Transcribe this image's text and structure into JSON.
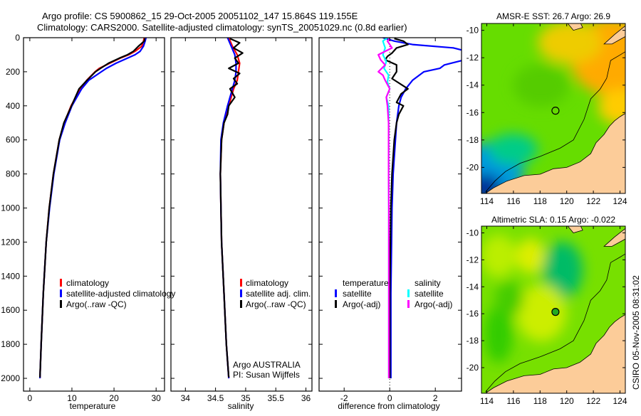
{
  "title_line1": "Argo profile: CS 5900862_15 29-Oct-2005 20051102_147 15.864S 119.155E",
  "title_line2": "Climatology: CARS2000. Satellite-adjusted climatology: synTS_20051029.nc (0.8d earlier)",
  "footer_vertical": "CSIRO 05-Nov-2005 08:31:02",
  "colors": {
    "climatology": "#ff0000",
    "satellite": "#0000ff",
    "argo": "#000000",
    "sal_satellite": "#00ffff",
    "sal_argo": "#ff00ff",
    "land": "#fccc99"
  },
  "chart_data": [
    {
      "type": "line",
      "id": "temperature",
      "xlabel": "temperature",
      "ylabel": "depth",
      "xlim": [
        -1.5,
        32
      ],
      "ylim": [
        2075,
        0
      ],
      "xticks": [
        0,
        10,
        20,
        30
      ],
      "yticks": [
        0,
        200,
        400,
        600,
        800,
        1000,
        1200,
        1400,
        1600,
        1800,
        2000
      ],
      "legend": [
        "climatology",
        "satellite-adjusted climatology",
        "Argo(..raw -QC)"
      ],
      "series": [
        {
          "name": "climatology",
          "color": "#ff0000",
          "depth": [
            0,
            20,
            50,
            80,
            100,
            120,
            150,
            180,
            200,
            250,
            300,
            400,
            500,
            600,
            800,
            1000,
            1200,
            1500,
            1800,
            2000
          ],
          "values": [
            27.2,
            27.0,
            26.6,
            25.0,
            23.5,
            21.5,
            19.0,
            16.5,
            15.5,
            13.5,
            12.0,
            9.8,
            8.2,
            7.0,
            5.6,
            4.6,
            3.9,
            3.2,
            2.7,
            2.4
          ]
        },
        {
          "name": "satellite-adjusted climatology",
          "color": "#0000ff",
          "depth": [
            0,
            20,
            50,
            80,
            100,
            120,
            150,
            180,
            200,
            250,
            300,
            400,
            500,
            600,
            800,
            1000,
            1200,
            1500,
            1800,
            2000
          ],
          "values": [
            27.6,
            27.4,
            27.0,
            26.2,
            25.0,
            23.2,
            20.5,
            18.2,
            17.0,
            14.0,
            12.3,
            10.0,
            8.4,
            7.1,
            5.7,
            4.7,
            3.9,
            3.2,
            2.7,
            2.4
          ]
        },
        {
          "name": "Argo(..raw -QC)",
          "color": "#000000",
          "depth": [
            5,
            20,
            50,
            80,
            100,
            120,
            150,
            180,
            200,
            250,
            300,
            400,
            500,
            600,
            800,
            1000,
            1200,
            1500,
            1800,
            1995
          ],
          "values": [
            27.3,
            27.2,
            25.8,
            24.6,
            23.2,
            21.3,
            18.7,
            16.8,
            15.6,
            13.6,
            11.7,
            9.9,
            8.1,
            7.0,
            5.6,
            4.6,
            3.9,
            3.2,
            2.7,
            2.4
          ]
        }
      ]
    },
    {
      "type": "line",
      "id": "salinity",
      "xlabel": "salinity",
      "ylabel": "depth",
      "xlim": [
        33.76,
        36.1
      ],
      "ylim": [
        2075,
        0
      ],
      "xticks": [
        34,
        34.5,
        35,
        35.5,
        36
      ],
      "yticks": [
        0,
        200,
        400,
        600,
        800,
        1000,
        1200,
        1400,
        1600,
        1800,
        2000
      ],
      "legend": [
        "climatology",
        "satellite adj. clim.",
        "Argo(..raw -QC)"
      ],
      "annotation": [
        "Argo AUSTRALIA",
        "PI: Susan Wijffels"
      ],
      "series": [
        {
          "name": "climatology",
          "color": "#ff0000",
          "depth": [
            0,
            50,
            100,
            150,
            200,
            250,
            300,
            400,
            500,
            600,
            800,
            1000,
            1200,
            1500,
            1800,
            2000
          ],
          "values": [
            34.72,
            34.78,
            34.86,
            34.9,
            34.88,
            34.86,
            34.8,
            34.72,
            34.64,
            34.6,
            34.58,
            34.59,
            34.6,
            34.64,
            34.68,
            34.72
          ]
        },
        {
          "name": "satellite adj. clim.",
          "color": "#0000ff",
          "depth": [
            0,
            50,
            100,
            150,
            200,
            250,
            300,
            400,
            500,
            600,
            800,
            1000,
            1200,
            1500,
            1800,
            2000
          ],
          "values": [
            34.7,
            34.76,
            34.82,
            34.84,
            34.84,
            34.82,
            34.78,
            34.7,
            34.63,
            34.59,
            34.58,
            34.59,
            34.6,
            34.64,
            34.68,
            34.72
          ]
        },
        {
          "name": "Argo(..raw -QC)",
          "color": "#000000",
          "depth": [
            5,
            30,
            60,
            90,
            120,
            150,
            180,
            210,
            240,
            270,
            300,
            350,
            400,
            450,
            500,
            600,
            800,
            1000,
            1200,
            1500,
            1800,
            1995
          ],
          "values": [
            34.74,
            34.9,
            34.8,
            34.95,
            34.82,
            34.88,
            34.72,
            34.9,
            34.8,
            34.86,
            34.74,
            34.82,
            34.72,
            34.7,
            34.64,
            34.6,
            34.58,
            34.59,
            34.6,
            34.64,
            34.68,
            34.72
          ]
        }
      ]
    },
    {
      "type": "line",
      "id": "difference",
      "xlabel": "difference from climatology",
      "ylabel": "depth",
      "xlim": [
        -3.1,
        3.15
      ],
      "ylim": [
        2075,
        0
      ],
      "xticks": [
        -2,
        0,
        2
      ],
      "yticks": [
        0,
        200,
        400,
        600,
        800,
        1000,
        1200,
        1400,
        1600,
        1800,
        2000
      ],
      "legend_headers": [
        "temperature",
        "salinity"
      ],
      "legend": [
        "satellite",
        "Argo(-adj)",
        "satellite",
        "Argo(-adj)"
      ],
      "series": [
        {
          "name": "temperature satellite",
          "color": "#0000ff",
          "depth": [
            0,
            20,
            40,
            60,
            80,
            100,
            130,
            160,
            180,
            200,
            250,
            300,
            350,
            400,
            500,
            600,
            800,
            1000,
            1500,
            2000
          ],
          "values": [
            -0.3,
            0.2,
            1.0,
            2.8,
            3.4,
            3.6,
            3.3,
            2.4,
            2.2,
            1.5,
            1.0,
            0.7,
            0.5,
            0.4,
            0.3,
            0.25,
            0.15,
            0.1,
            0.05,
            0.05
          ]
        },
        {
          "name": "temperature Argo(-adj)",
          "color": "#000000",
          "depth": [
            5,
            20,
            40,
            60,
            90,
            110,
            130,
            160,
            200,
            240,
            300,
            330,
            380,
            400,
            450,
            500,
            600,
            800,
            1000,
            1500,
            2000
          ],
          "values": [
            0.2,
            0.6,
            0.8,
            0.3,
            0.1,
            -0.1,
            -0.2,
            0.3,
            0.3,
            0.1,
            0.8,
            0.5,
            0.3,
            0.6,
            0.4,
            0.3,
            0.2,
            0.1,
            0.05,
            0.0,
            0.0
          ]
        },
        {
          "name": "salinity satellite",
          "color": "#00ffff",
          "depth": [
            0,
            20,
            60,
            100,
            140,
            180,
            220,
            260,
            300,
            350,
            400,
            500,
            600,
            800,
            1000,
            1500,
            2000
          ],
          "values": [
            -0.1,
            -0.3,
            -0.2,
            -0.3,
            -0.15,
            -0.25,
            -0.05,
            -0.1,
            0.0,
            -0.15,
            -0.05,
            -0.05,
            -0.05,
            -0.05,
            -0.04,
            -0.04,
            -0.04
          ]
        },
        {
          "name": "salinity Argo(-adj)",
          "color": "#ff00ff",
          "depth": [
            5,
            20,
            60,
            100,
            130,
            160,
            200,
            220,
            250,
            300,
            350,
            400,
            500,
            600,
            800,
            1000,
            1500,
            2000
          ],
          "values": [
            0.0,
            -0.1,
            0.1,
            -0.5,
            -0.4,
            -0.2,
            -0.5,
            -0.3,
            -0.2,
            0.0,
            -0.15,
            -0.1,
            -0.05,
            -0.05,
            -0.05,
            -0.04,
            -0.04,
            -0.04
          ]
        }
      ]
    },
    {
      "type": "heatmap",
      "id": "sst-map",
      "title": "AMSR-E SST: 26.7 Argo: 26.9",
      "xlim": [
        113.6,
        124.4
      ],
      "ylim": [
        -21.9,
        -9.5
      ],
      "xticks": [
        114,
        116,
        118,
        120,
        122,
        124
      ],
      "yticks": [
        -10,
        -12,
        -14,
        -16,
        -18,
        -20
      ],
      "argo_position": [
        119.155,
        -15.864
      ]
    },
    {
      "type": "heatmap",
      "id": "sla-map",
      "title": "Altimetric SLA: 0.15 Argo: -0.022",
      "xlim": [
        113.6,
        124.4
      ],
      "ylim": [
        -21.9,
        -9.5
      ],
      "xticks": [
        114,
        116,
        118,
        120,
        122,
        124
      ],
      "yticks": [
        -10,
        -12,
        -14,
        -16,
        -18,
        -20
      ],
      "argo_position": [
        119.155,
        -15.864
      ]
    }
  ]
}
